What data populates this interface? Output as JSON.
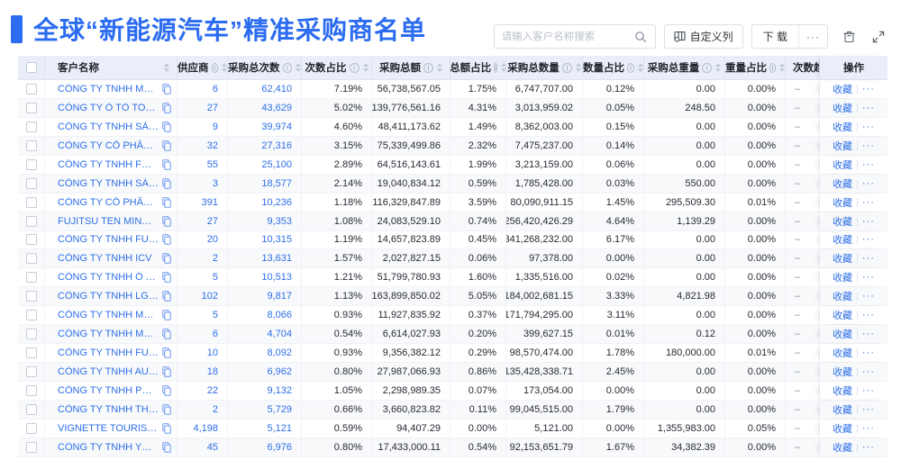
{
  "page": {
    "title": "全球“新能源汽车”精准采购商名单"
  },
  "toolbar": {
    "search_placeholder": "请输入客户名称搜索",
    "customize_columns": "自定义列",
    "download": "下 载",
    "more": "···"
  },
  "table": {
    "columns": [
      {
        "key": "select",
        "label": "",
        "checkbox": true,
        "info": false,
        "sort": false
      },
      {
        "key": "name",
        "label": "客户名称",
        "info": false,
        "sort": true
      },
      {
        "key": "suppliers",
        "label": "供应商",
        "info": true,
        "sort": true
      },
      {
        "key": "count",
        "label": "采购总次数",
        "info": true,
        "sort": true
      },
      {
        "key": "count_pct",
        "label": "次数占比",
        "info": true,
        "sort": true
      },
      {
        "key": "amount",
        "label": "采购总额",
        "info": true,
        "sort": true
      },
      {
        "key": "amount_pct",
        "label": "总额占比",
        "info": true,
        "sort": true
      },
      {
        "key": "qty",
        "label": "采购总数量",
        "info": true,
        "sort": true
      },
      {
        "key": "qty_pct",
        "label": "数量占比",
        "info": true,
        "sort": true
      },
      {
        "key": "weight",
        "label": "采购总重量",
        "info": true,
        "sort": true
      },
      {
        "key": "weight_pct",
        "label": "重量占比",
        "info": true,
        "sort": true
      },
      {
        "key": "trend",
        "label": "次数趋势",
        "info": false,
        "sort": false
      },
      {
        "key": "action",
        "label": "操作",
        "info": false,
        "sort": false
      }
    ],
    "row_actions": {
      "favorite": "收藏",
      "more": "···"
    },
    "trend_placeholder": "–",
    "rows": [
      {
        "name": "CÔNG TY TNHH MTV SẢN XUẤ...",
        "suppliers": "6",
        "count": "62,410",
        "count_pct": "7.19%",
        "amount": "56,738,567.05",
        "amount_pct": "1.75%",
        "qty": "6,747,707.00",
        "qty_pct": "0.12%",
        "weight": "0.00",
        "weight_pct": "0.00%"
      },
      {
        "name": "CÔNG TY Ô TÔ TOYOTA VIỆT ...",
        "suppliers": "27",
        "count": "43,629",
        "count_pct": "5.02%",
        "amount": "139,776,561.16",
        "amount_pct": "4.31%",
        "qty": "3,013,959.02",
        "qty_pct": "0.05%",
        "weight": "248.50",
        "weight_pct": "0.00%"
      },
      {
        "name": "CÔNG TY TNHH SẢN XUẤT VÀ ...",
        "suppliers": "9",
        "count": "39,974",
        "count_pct": "4.60%",
        "amount": "48,411,173.62",
        "amount_pct": "1.49%",
        "qty": "8,362,003.00",
        "qty_pct": "0.15%",
        "weight": "0.00",
        "weight_pct": "0.00%"
      },
      {
        "name": "CÔNG TY CỔ PHẦN SẢN XUẤT...",
        "suppliers": "32",
        "count": "27,316",
        "count_pct": "3.15%",
        "amount": "75,339,499.86",
        "amount_pct": "2.32%",
        "qty": "7,475,237.00",
        "qty_pct": "0.14%",
        "weight": "0.00",
        "weight_pct": "0.00%"
      },
      {
        "name": "CÔNG TY TNHH FORD VIỆT NAM",
        "suppliers": "55",
        "count": "25,100",
        "count_pct": "2.89%",
        "amount": "64,516,143.61",
        "amount_pct": "1.99%",
        "qty": "3,213,159.00",
        "qty_pct": "0.06%",
        "weight": "0.00",
        "weight_pct": "0.00%"
      },
      {
        "name": "CÔNG TY TNHH SẢN XUẤT VÀ ...",
        "suppliers": "3",
        "count": "18,577",
        "count_pct": "2.14%",
        "amount": "19,040,834.12",
        "amount_pct": "0.59%",
        "qty": "1,785,428.00",
        "qty_pct": "0.03%",
        "weight": "550.00",
        "weight_pct": "0.00%"
      },
      {
        "name": "CÔNG TY CỔ PHẦN SẢN XUẤT...",
        "suppliers": "391",
        "count": "10,236",
        "count_pct": "1.18%",
        "amount": "116,329,847.89",
        "amount_pct": "3.59%",
        "qty": "80,090,911.15",
        "qty_pct": "1.45%",
        "weight": "295,509.30",
        "weight_pct": "0.01%"
      },
      {
        "name": "FUJITSU TEN MINDA INDIA PVT...",
        "suppliers": "27",
        "count": "9,353",
        "count_pct": "1.08%",
        "amount": "24,083,529.10",
        "amount_pct": "0.74%",
        "qty": "256,420,426.29",
        "qty_pct": "4.64%",
        "weight": "1,139.29",
        "weight_pct": "0.00%"
      },
      {
        "name": "CÔNG TY TNHH FURUKAWA A...",
        "suppliers": "20",
        "count": "10,315",
        "count_pct": "1.19%",
        "amount": "14,657,823.89",
        "amount_pct": "0.45%",
        "qty": "341,268,232.00",
        "qty_pct": "6.17%",
        "weight": "0.00",
        "weight_pct": "0.00%"
      },
      {
        "name": "CÔNG TY TNHH ICV",
        "suppliers": "2",
        "count": "13,631",
        "count_pct": "1.57%",
        "amount": "2,027,827.15",
        "amount_pct": "0.06%",
        "qty": "97,378.00",
        "qty_pct": "0.00%",
        "weight": "0.00",
        "weight_pct": "0.00%"
      },
      {
        "name": "CÔNG TY TNHH Ô TÔ MITSUBI...",
        "suppliers": "5",
        "count": "10,513",
        "count_pct": "1.21%",
        "amount": "51,799,780.93",
        "amount_pct": "1.60%",
        "qty": "1,335,516.00",
        "qty_pct": "0.02%",
        "weight": "0.00",
        "weight_pct": "0.00%"
      },
      {
        "name": "CÔNG TY TNHH LG ELECTRON...",
        "suppliers": "102",
        "count": "9,817",
        "count_pct": "1.13%",
        "amount": "163,899,850.02",
        "amount_pct": "5.05%",
        "qty": "184,002,681.15",
        "qty_pct": "3.33%",
        "weight": "4,821.98",
        "weight_pct": "0.00%"
      },
      {
        "name": "CÔNG TY TNHH MỘT THÀNH V...",
        "suppliers": "5",
        "count": "8,066",
        "count_pct": "0.93%",
        "amount": "11,927,835.92",
        "amount_pct": "0.37%",
        "qty": "171,794,295.00",
        "qty_pct": "3.11%",
        "weight": "0.00",
        "weight_pct": "0.00%"
      },
      {
        "name": "CÔNG TY TNHH MERCEDES-B...",
        "suppliers": "6",
        "count": "4,704",
        "count_pct": "0.54%",
        "amount": "6,614,027.93",
        "amount_pct": "0.20%",
        "qty": "399,627.15",
        "qty_pct": "0.01%",
        "weight": "0.12",
        "weight_pct": "0.00%"
      },
      {
        "name": "CÔNG TY TNHH FURUKAWA A...",
        "suppliers": "10",
        "count": "8,092",
        "count_pct": "0.93%",
        "amount": "9,356,382.12",
        "amount_pct": "0.29%",
        "qty": "98,570,474.00",
        "qty_pct": "1.78%",
        "weight": "180,000.00",
        "weight_pct": "0.01%"
      },
      {
        "name": "CÔNG TY TNHH AUTEL VIỆT N...",
        "suppliers": "18",
        "count": "6,962",
        "count_pct": "0.80%",
        "amount": "27,987,066.93",
        "amount_pct": "0.86%",
        "qty": "135,428,338.71",
        "qty_pct": "2.45%",
        "weight": "0.00",
        "weight_pct": "0.00%"
      },
      {
        "name": "CÔNG TY TNHH PHÂN PHỐI T...",
        "suppliers": "22",
        "count": "9,132",
        "count_pct": "1.05%",
        "amount": "2,298,989.35",
        "amount_pct": "0.07%",
        "qty": "173,054.00",
        "qty_pct": "0.00%",
        "weight": "0.00",
        "weight_pct": "0.00%"
      },
      {
        "name": "CÔNG TY TNHH THN AUTOPAR...",
        "suppliers": "2",
        "count": "5,729",
        "count_pct": "0.66%",
        "amount": "3,660,823.82",
        "amount_pct": "0.11%",
        "qty": "99,045,515.00",
        "qty_pct": "1.79%",
        "weight": "0.00",
        "weight_pct": "0.00%"
      },
      {
        "name": "VIGNETTE TOURISTIQUE G UNI...",
        "suppliers": "4,198",
        "count": "5,121",
        "count_pct": "0.59%",
        "amount": "94,407.29",
        "amount_pct": "0.00%",
        "qty": "5,121.00",
        "qty_pct": "0.00%",
        "weight": "1,355,983.00",
        "weight_pct": "0.05%"
      },
      {
        "name": "CÔNG TY TNHH YOKOWO VIỆT...",
        "suppliers": "45",
        "count": "6,976",
        "count_pct": "0.80%",
        "amount": "17,433,000.11",
        "amount_pct": "0.54%",
        "qty": "92,153,651.79",
        "qty_pct": "1.67%",
        "weight": "34,382.39",
        "weight_pct": "0.00%"
      }
    ]
  },
  "colors": {
    "accent": "#2b6cf0",
    "link": "#2e6fe8",
    "header_bg": "#e9eef9"
  }
}
